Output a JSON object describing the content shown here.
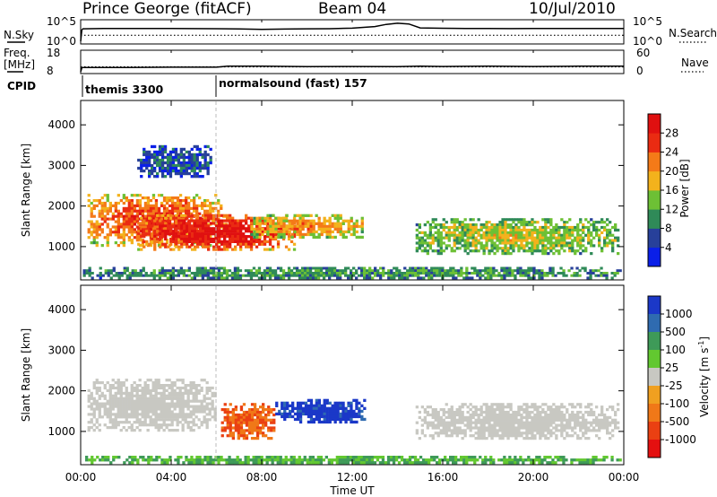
{
  "header": {
    "station": "Prince George (fitACF)",
    "beam": "Beam 04",
    "date": "10/Jul/2010"
  },
  "chart_data": [
    {
      "type": "line",
      "panel": "sky-search-noise",
      "left_label": "N.Sky",
      "right_label": "N.Search",
      "yticks_left": [
        "10^5",
        "10^0"
      ],
      "yticks_right": [
        "10^5",
        "10^0"
      ],
      "yscale": "log",
      "ylim": [
        1,
        100000
      ],
      "series": [
        {
          "name": "N.Sky",
          "style": "solid",
          "x": [
            0,
            0.05,
            0.1,
            1,
            2,
            3,
            4,
            5,
            6,
            7,
            8,
            9,
            10,
            11,
            12,
            13,
            13.5,
            14,
            14.5,
            15,
            16,
            17,
            18,
            19,
            20,
            21,
            22,
            23,
            24
          ],
          "y": [
            1,
            1000,
            2000,
            2500,
            2600,
            2500,
            2400,
            2300,
            2200,
            1800,
            1500,
            1700,
            2000,
            2200,
            3000,
            8000,
            30000,
            60000,
            40000,
            3500,
            2800,
            2600,
            2400,
            2300,
            2400,
            2500,
            2600,
            2500,
            2400
          ]
        },
        {
          "name": "N.Search",
          "style": "dotted",
          "x": [
            0,
            24
          ],
          "y": [
            40,
            40
          ]
        }
      ]
    },
    {
      "type": "line",
      "panel": "frequency-nave",
      "left_label": "Freq. [MHz]",
      "right_label": "Nave",
      "yticks_left": [
        "18",
        "8"
      ],
      "yticks_right": [
        "60",
        "0"
      ],
      "series": [
        {
          "name": "Freq.",
          "style": "solid",
          "x": [
            0,
            0.05,
            0.1,
            2,
            4,
            6,
            6.5,
            8,
            10,
            12,
            14,
            15,
            16,
            18,
            20,
            22,
            24
          ],
          "y": [
            8,
            10,
            10.2,
            10.2,
            10.3,
            10.3,
            10.8,
            10.8,
            10.6,
            10.7,
            10.6,
            10.8,
            10.7,
            10.8,
            10.7,
            10.8,
            10.8
          ]
        },
        {
          "name": "Nave",
          "style": "dotted",
          "x": [
            0,
            24
          ],
          "y": [
            15,
            15
          ]
        }
      ]
    },
    {
      "type": "table",
      "panel": "cpid",
      "label": "CPID",
      "segments": [
        {
          "start_hour": 0,
          "end_hour": 6,
          "name": "themis 3300"
        },
        {
          "start_hour": 6,
          "end_hour": 24,
          "name": "normalsound (fast) 157"
        }
      ]
    },
    {
      "type": "heatmap",
      "panel": "power",
      "ylabel": "Slant Range [km]",
      "ylim": [
        180,
        4600
      ],
      "yticks": [
        "1000",
        "2000",
        "3000",
        "4000"
      ],
      "colorbar_label": "Power [dB]",
      "colorbar_ticks": [
        "4",
        "8",
        "12",
        "16",
        "20",
        "24",
        "28"
      ],
      "colorbar_colors": [
        "#0a1fe8",
        "#27409a",
        "#2f8a58",
        "#6dc035",
        "#f3b21c",
        "#f47a18",
        "#ea2b12",
        "#e01010"
      ],
      "regions": [
        {
          "x": [
            0.3,
            6.5
          ],
          "range_km": [
            1000,
            2300
          ],
          "level": 5
        },
        {
          "x": [
            2.5,
            9.5
          ],
          "range_km": [
            900,
            1800
          ],
          "level": 6
        },
        {
          "x": [
            7.5,
            12.5
          ],
          "range_km": [
            1200,
            1800
          ],
          "level": 4
        },
        {
          "x": [
            14.8,
            23.8
          ],
          "range_km": [
            800,
            1700
          ],
          "level": 3
        },
        {
          "x": [
            2.5,
            5.8
          ],
          "range_km": [
            2700,
            3500
          ],
          "level": 1
        },
        {
          "x": [
            0.1,
            23.9
          ],
          "range_km": [
            200,
            500
          ],
          "level": 2
        }
      ]
    },
    {
      "type": "heatmap",
      "panel": "velocity",
      "ylabel": "Slant Range [km]",
      "xlabel": "Time UT",
      "ylim": [
        180,
        4600
      ],
      "yticks": [
        "1000",
        "2000",
        "3000",
        "4000"
      ],
      "xticks": [
        "00:00",
        "04:00",
        "08:00",
        "12:00",
        "16:00",
        "20:00",
        "00:00"
      ],
      "xlim": [
        0,
        24
      ],
      "colorbar_label": "Velocity [m s^-1]",
      "colorbar_ticks": [
        "1000",
        "500",
        "100",
        "25",
        "-25",
        "-100",
        "-500",
        "-1000"
      ],
      "colorbar_colors": [
        "#1b38c8",
        "#2f6bb0",
        "#3e9a58",
        "#62c830",
        "#c8c8c2",
        "#f0a020",
        "#f07818",
        "#ea4012",
        "#e41010"
      ],
      "regions": [
        {
          "x": [
            0.3,
            6.0
          ],
          "range_km": [
            1000,
            2300
          ],
          "velocity": 0
        },
        {
          "x": [
            6.2,
            8.6
          ],
          "range_km": [
            800,
            1700
          ],
          "velocity": -500
        },
        {
          "x": [
            8.6,
            12.6
          ],
          "range_km": [
            1200,
            1800
          ],
          "velocity": 700
        },
        {
          "x": [
            14.8,
            23.8
          ],
          "range_km": [
            800,
            1700
          ],
          "velocity": 0
        },
        {
          "x": [
            0.2,
            23.9
          ],
          "range_km": [
            200,
            400
          ],
          "velocity": 80
        }
      ]
    }
  ]
}
